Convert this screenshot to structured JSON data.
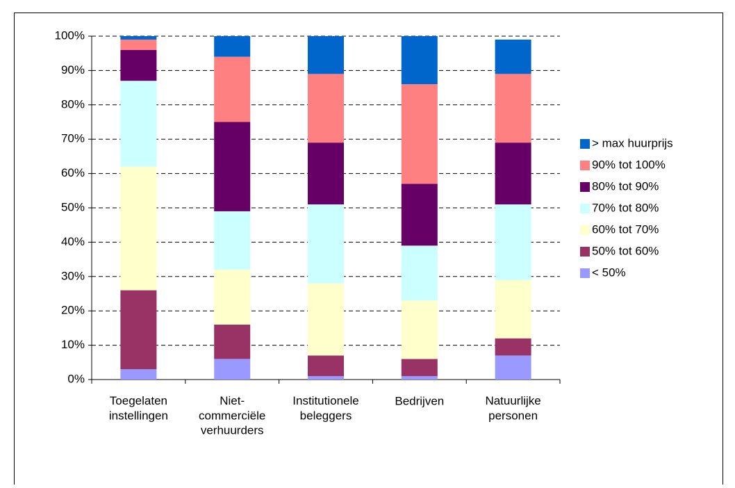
{
  "chart_data": {
    "type": "stacked-bar",
    "categories": [
      "Toegelaten\ninstellingen",
      "Niet-\ncommerciële\nverhuurders",
      "Institutionele\nbeleggers",
      "Bedrijven",
      "Natuurlijke\npersonen"
    ],
    "series": [
      {
        "name": "< 50%",
        "color": "#9999ff",
        "values": [
          3,
          6,
          1,
          1,
          7
        ]
      },
      {
        "name": "50% tot 60%",
        "color": "#993366",
        "values": [
          23,
          10,
          6,
          5,
          5
        ]
      },
      {
        "name": "60% tot 70%",
        "color": "#ffffcc",
        "values": [
          36,
          16,
          21,
          17,
          17
        ]
      },
      {
        "name": "70% tot 80%",
        "color": "#ccffff",
        "values": [
          25,
          17,
          23,
          16,
          22
        ]
      },
      {
        "name": "80% tot 90%",
        "color": "#660066",
        "values": [
          9,
          26,
          18,
          18,
          18
        ]
      },
      {
        "name": "90% tot 100%",
        "color": "#ff8080",
        "values": [
          3,
          19,
          20,
          29,
          20
        ]
      },
      {
        "name": "> max huurprijs",
        "color": "#0066cc",
        "values": [
          1,
          6,
          11,
          14,
          10
        ]
      }
    ],
    "ylim": [
      0,
      100
    ],
    "yticks": [
      {
        "value": 0,
        "label": "0%"
      },
      {
        "value": 10,
        "label": "10%"
      },
      {
        "value": 20,
        "label": "20%"
      },
      {
        "value": 30,
        "label": "30%"
      },
      {
        "value": 40,
        "label": "40%"
      },
      {
        "value": 50,
        "label": "50%"
      },
      {
        "value": 60,
        "label": "60%"
      },
      {
        "value": 70,
        "label": "70%"
      },
      {
        "value": 80,
        "label": "80%"
      },
      {
        "value": 90,
        "label": "90%"
      },
      {
        "value": 100,
        "label": "100%"
      }
    ],
    "grid": true,
    "legend": "right"
  }
}
